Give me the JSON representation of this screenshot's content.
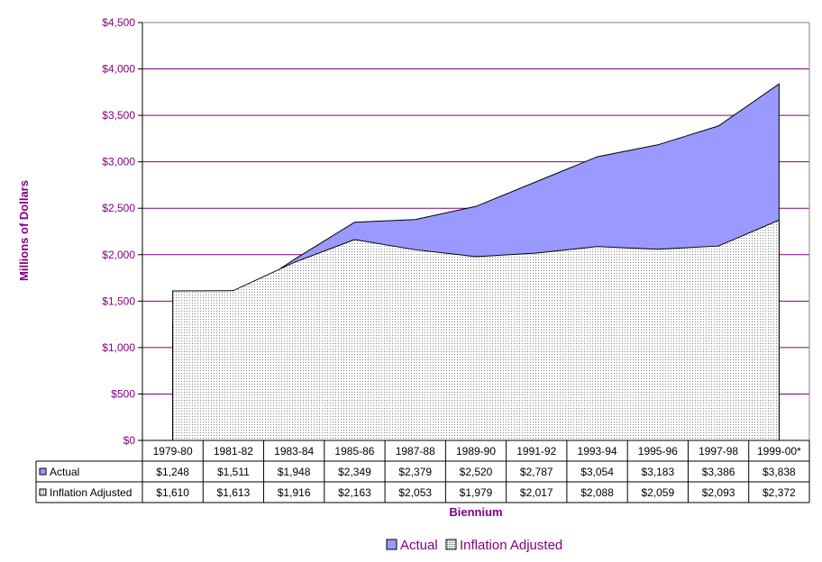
{
  "chart_data": {
    "type": "area",
    "title": "",
    "ylabel": "Millions of Dollars",
    "xlabel": "Biennium",
    "ylim": [
      0,
      4500
    ],
    "ytick_step": 500,
    "ytick_labels": [
      "$0",
      "$500",
      "$1,000",
      "$1,500",
      "$2,000",
      "$2,500",
      "$3,000",
      "$3,500",
      "$4,000",
      "$4,500"
    ],
    "categories": [
      "1979-80",
      "1981-82",
      "1983-84",
      "1985-86",
      "1987-88",
      "1989-90",
      "1991-92",
      "1993-94",
      "1995-96",
      "1997-98",
      "1999-00*"
    ],
    "grid": true,
    "legend_position": "bottom",
    "series": [
      {
        "name": "Actual",
        "color": "#9999ff",
        "values": [
          1248,
          1511,
          1948,
          2349,
          2379,
          2520,
          2787,
          3054,
          3183,
          3386,
          3838
        ],
        "labels": [
          "$1,248",
          "$1,511",
          "$1,948",
          "$2,349",
          "$2,379",
          "$2,520",
          "$2,787",
          "$3,054",
          "$3,183",
          "$3,386",
          "$3,838"
        ]
      },
      {
        "name": "Inflation Adjusted",
        "color": "#ffffff",
        "pattern": "dotted",
        "values": [
          1610,
          1613,
          1916,
          2163,
          2053,
          1979,
          2017,
          2088,
          2059,
          2093,
          2372
        ],
        "labels": [
          "$1,610",
          "$1,613",
          "$1,916",
          "$2,163",
          "$2,053",
          "$1,979",
          "$2,017",
          "$2,088",
          "$2,059",
          "$2,093",
          "$2,372"
        ]
      }
    ],
    "colors": {
      "text": "#800080",
      "grid": "#800080",
      "outline": "#000000"
    }
  }
}
